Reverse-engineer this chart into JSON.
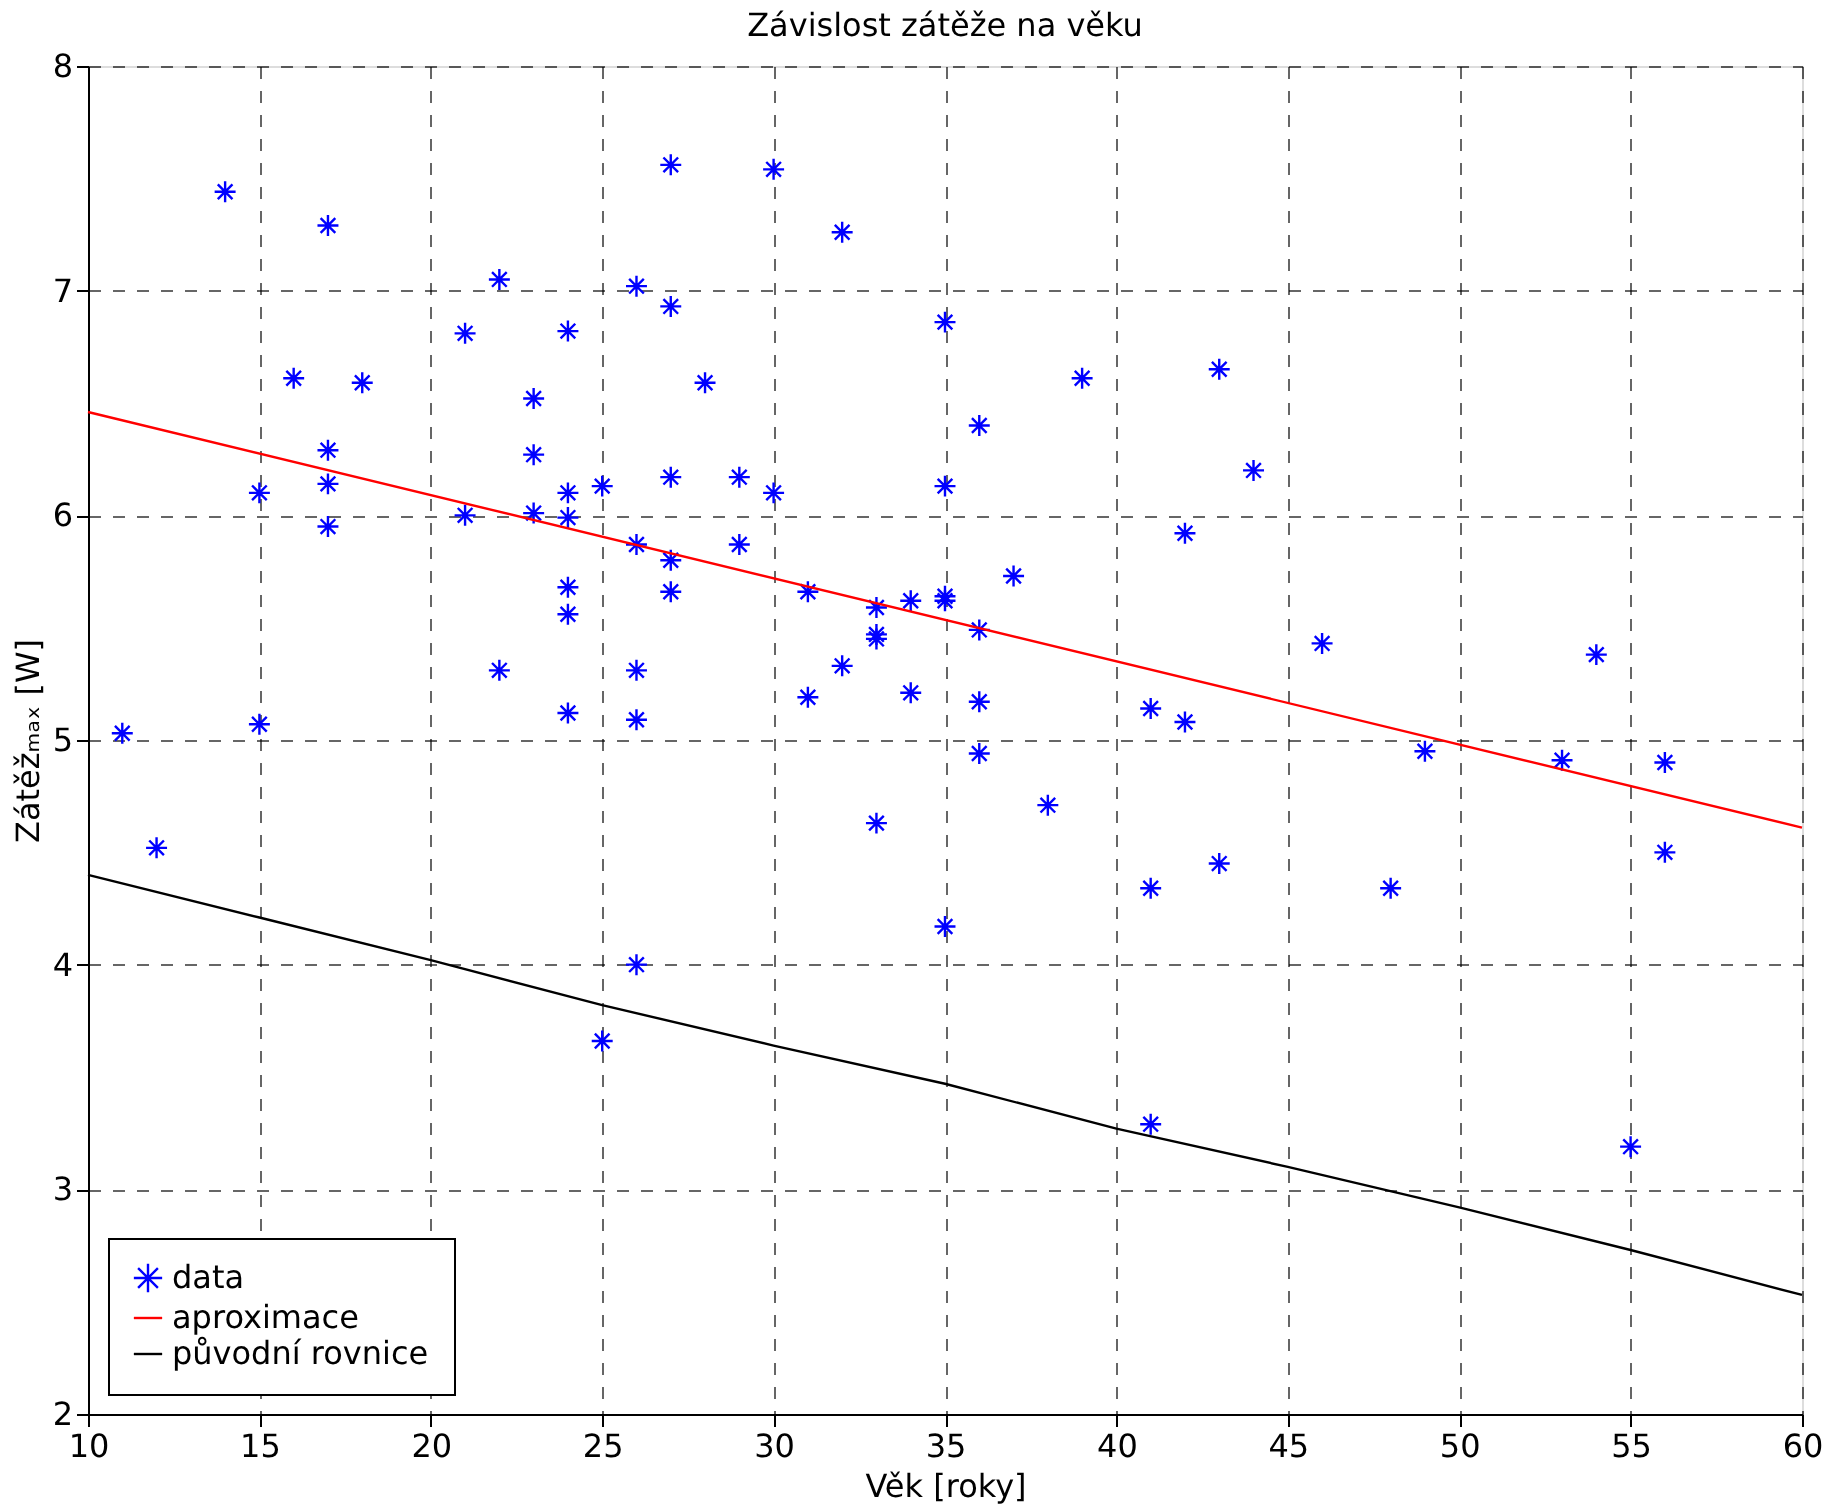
{
  "chart_data": {
    "type": "scatter",
    "title": "Závislost zátěže na věku",
    "xlabel": "Věk [roky]",
    "ylabel": "Zátěžₘₐₓ [W]",
    "xlim": [
      10,
      60
    ],
    "xticks": [
      10,
      15,
      20,
      25,
      30,
      35,
      40,
      45,
      50,
      55,
      60
    ],
    "ylim": [
      2,
      8
    ],
    "yticks": [
      2,
      3,
      4,
      5,
      6,
      7,
      8
    ],
    "grid": true,
    "legend": "bottom left",
    "series": [
      {
        "name": "data",
        "marker": "cross",
        "color": "#0000ff",
        "x": [
          11,
          12,
          14,
          15,
          15,
          16,
          17,
          17,
          17,
          17,
          18,
          21,
          21,
          22,
          22,
          23,
          23,
          23,
          24,
          24,
          24,
          24,
          24,
          24,
          25,
          25,
          26,
          26,
          26,
          26,
          26,
          27,
          27,
          27,
          27,
          27,
          28,
          29,
          29,
          30,
          30,
          31,
          31,
          32,
          32,
          33,
          33,
          33,
          33,
          34,
          34,
          35,
          35,
          35,
          35,
          35,
          36,
          36,
          36,
          36,
          37,
          38,
          39,
          41,
          41,
          41,
          42,
          42,
          43,
          43,
          44,
          46,
          48,
          49,
          53,
          54,
          55,
          56,
          56
        ],
        "values": [
          5.03,
          4.52,
          7.44,
          6.1,
          5.07,
          6.61,
          7.29,
          6.29,
          6.14,
          5.95,
          6.59,
          6.81,
          6.0,
          7.05,
          5.31,
          6.52,
          6.27,
          6.01,
          6.82,
          6.1,
          5.99,
          5.68,
          5.56,
          5.12,
          6.13,
          3.66,
          7.02,
          5.87,
          5.31,
          5.09,
          4.0,
          7.56,
          6.93,
          6.17,
          5.8,
          5.66,
          6.59,
          6.17,
          5.87,
          7.54,
          6.1,
          5.66,
          5.19,
          7.26,
          5.33,
          5.59,
          5.47,
          5.45,
          4.63,
          5.62,
          5.21,
          6.86,
          6.13,
          5.64,
          5.62,
          4.17,
          6.4,
          5.49,
          5.17,
          4.94,
          5.73,
          4.71,
          6.61,
          5.14,
          4.34,
          3.29,
          5.92,
          5.08,
          6.65,
          4.45,
          6.2,
          5.43,
          4.34,
          4.95,
          4.91,
          5.38,
          3.19,
          4.9,
          4.5
        ]
      },
      {
        "name": "aproximace",
        "type": "line",
        "marker": "none",
        "color": "#ff0000",
        "x": [
          10,
          60
        ],
        "values": [
          6.46,
          4.61
        ]
      },
      {
        "name": "původní rovnice",
        "type": "line",
        "marker": "none",
        "color": "#000000",
        "x": [
          10,
          15,
          20,
          25,
          30,
          35,
          40,
          45,
          50,
          55,
          60
        ],
        "values": [
          4.4,
          4.21,
          4.02,
          3.82,
          3.64,
          3.47,
          3.27,
          3.1,
          2.92,
          2.73,
          2.53
        ]
      }
    ]
  }
}
